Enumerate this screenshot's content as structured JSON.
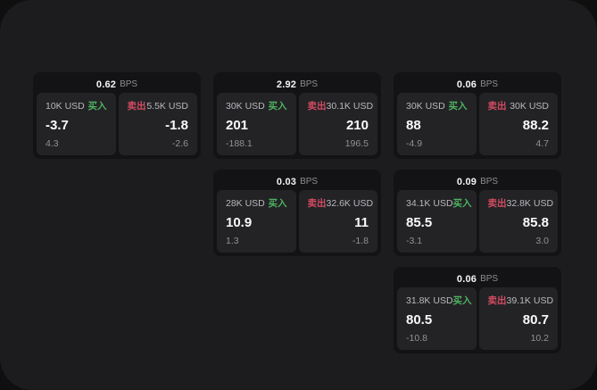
{
  "labels": {
    "buy": "买入",
    "sell": "卖出",
    "bps_unit": "BPS"
  },
  "colors": {
    "buy": "#4db360",
    "sell": "#d34b61",
    "page_bg": "#1c1c1e",
    "card_bg": "#131315",
    "panel_bg": "#232326"
  },
  "cards": [
    {
      "bps": "0.62",
      "buy": {
        "amount": "10K USD",
        "value": "-3.7",
        "delta": "4.3"
      },
      "sell": {
        "amount": "5.5K USD",
        "value": "-1.8",
        "delta": "-2.6"
      }
    },
    {
      "bps": "2.92",
      "buy": {
        "amount": "30K USD",
        "value": "201",
        "delta": "-188.1"
      },
      "sell": {
        "amount": "30.1K USD",
        "value": "210",
        "delta": "196.5"
      }
    },
    {
      "bps": "0.06",
      "buy": {
        "amount": "30K USD",
        "value": "88",
        "delta": "-4.9"
      },
      "sell": {
        "amount": "30K USD",
        "value": "88.2",
        "delta": "4.7"
      }
    },
    {
      "bps": "0.03",
      "buy": {
        "amount": "28K USD",
        "value": "10.9",
        "delta": "1.3"
      },
      "sell": {
        "amount": "32.6K USD",
        "value": "11",
        "delta": "-1.8"
      }
    },
    {
      "bps": "0.09",
      "buy": {
        "amount": "34.1K USD",
        "value": "85.5",
        "delta": "-3.1"
      },
      "sell": {
        "amount": "32.8K USD",
        "value": "85.8",
        "delta": "3.0"
      }
    },
    {
      "bps": "0.06",
      "buy": {
        "amount": "31.8K USD",
        "value": "80.5",
        "delta": "-10.8"
      },
      "sell": {
        "amount": "39.1K USD",
        "value": "80.7",
        "delta": "10.2"
      }
    }
  ]
}
